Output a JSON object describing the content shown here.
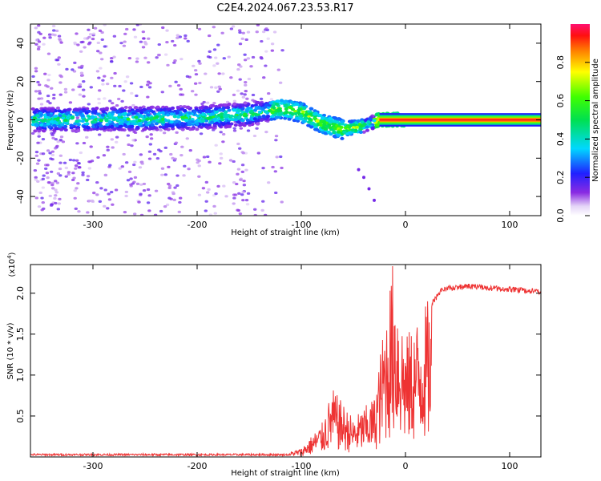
{
  "title": "C2E4.2024.067.23.53.R17",
  "chart_data": [
    {
      "type": "heatmap",
      "xlabel": "Height of straight line (km)",
      "ylabel": "Frequency (Hz)",
      "xlim": [
        -360,
        130
      ],
      "ylim": [
        -50,
        50
      ],
      "xticks": [
        -300,
        -200,
        -100,
        0,
        100
      ],
      "yticks": [
        -40,
        -20,
        0,
        20,
        40
      ],
      "colorbar": {
        "label": "Normalized spectral amplitude",
        "range": [
          0,
          1
        ],
        "ticks": [
          "0.0",
          "0.2",
          "0.4",
          "0.6",
          "0.8"
        ],
        "tick_values": [
          0,
          0.2,
          0.4,
          0.6,
          0.8
        ]
      },
      "ridge": {
        "description_points": [
          {
            "x": -355,
            "f": 0
          },
          {
            "x": -200,
            "f": 1
          },
          {
            "x": -150,
            "f": 3
          },
          {
            "x": -120,
            "f": 6
          },
          {
            "x": -100,
            "f": 4
          },
          {
            "x": -80,
            "f": -2
          },
          {
            "x": -60,
            "f": -5
          },
          {
            "x": -40,
            "f": -3
          },
          {
            "x": -25,
            "f": 0
          },
          {
            "x": 0,
            "f": 0
          },
          {
            "x": 130,
            "f": 0
          }
        ]
      }
    },
    {
      "type": "line",
      "xlabel": "Height of straight line (km)",
      "ylabel": "SNR (10 * v/v)",
      "y_multiplier_label": "(x10",
      "y_multiplier_exp": "4",
      "y_multiplier_close": ")",
      "xlim": [
        -360,
        130
      ],
      "ylim": [
        0,
        2.35
      ],
      "xticks": [
        -300,
        -200,
        -100,
        0,
        100
      ],
      "yticks": [
        0.5,
        1.0,
        1.5,
        2.0
      ],
      "ytick_labels": [
        "0.5",
        "1.0",
        "1.5",
        "2.0"
      ],
      "series": [
        {
          "name": "SNR",
          "color": "#ee3333",
          "envelope": [
            {
              "x": -360,
              "y": 0.02
            },
            {
              "x": -120,
              "y": 0.03
            },
            {
              "x": -100,
              "y": 0.1
            },
            {
              "x": -80,
              "y": 0.4
            },
            {
              "x": -70,
              "y": 0.8
            },
            {
              "x": -50,
              "y": 0.45
            },
            {
              "x": -30,
              "y": 0.7
            },
            {
              "x": -20,
              "y": 1.6
            },
            {
              "x": -12,
              "y": 2.3
            },
            {
              "x": 0,
              "y": 1.4
            },
            {
              "x": 20,
              "y": 1.8
            },
            {
              "x": 35,
              "y": 2.08
            },
            {
              "x": 60,
              "y": 2.12
            },
            {
              "x": 130,
              "y": 2.05
            }
          ]
        }
      ]
    }
  ]
}
